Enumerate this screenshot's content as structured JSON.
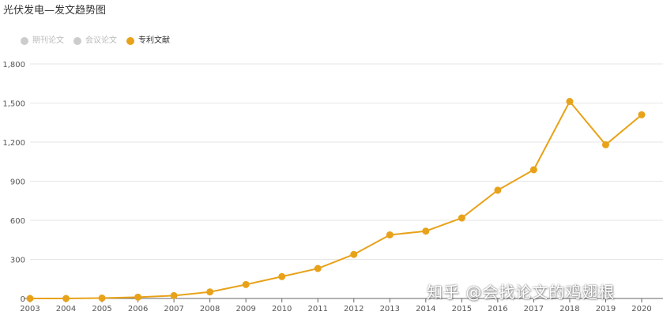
{
  "page_title": "光伏发电—发文趋势图",
  "legend": {
    "items": [
      {
        "label": "期刊论文",
        "color": "#cccccc",
        "active": false
      },
      {
        "label": "会议论文",
        "color": "#cccccc",
        "active": false
      },
      {
        "label": "专利文献",
        "color": "#e8a21a",
        "active": true
      }
    ]
  },
  "watermark": "知乎 @会找论文的鸡翅根",
  "colors": {
    "series": "#e8a21a",
    "inactive_legend": "#cccccc",
    "grid": "#e6e6e6",
    "axis": "#666666"
  },
  "chart_data": {
    "type": "line",
    "title": "光伏发电—发文趋势图",
    "xlabel": "",
    "ylabel": "",
    "categories": [
      "2003",
      "2004",
      "2005",
      "2006",
      "2007",
      "2008",
      "2009",
      "2010",
      "2011",
      "2012",
      "2013",
      "2014",
      "2015",
      "2016",
      "2017",
      "2018",
      "2019",
      "2020"
    ],
    "y_ticks": [
      "0",
      "300",
      "600",
      "900",
      "1,200",
      "1,500",
      "1,800"
    ],
    "ylim": [
      0,
      1800
    ],
    "grid": true,
    "legend_position": "top-left",
    "series": [
      {
        "name": "专利文献",
        "values": [
          0,
          0,
          3,
          10,
          22,
          50,
          107,
          168,
          230,
          338,
          488,
          517,
          618,
          831,
          988,
          1512,
          1180,
          1410
        ]
      }
    ]
  }
}
